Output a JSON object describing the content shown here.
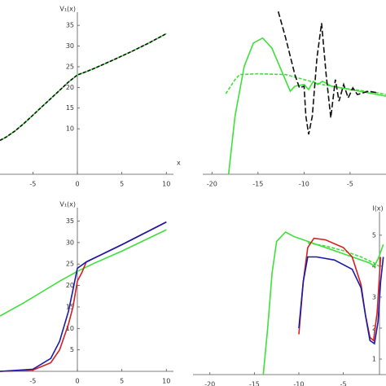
{
  "chart_data": [
    {
      "type": "line",
      "y_label": "V₁(x)",
      "x_label": "x",
      "xlim": [
        -8.7,
        10.8
      ],
      "ylim": [
        -1,
        37
      ],
      "xticks": [
        -5,
        0,
        5,
        10
      ],
      "yticks": [
        10,
        15,
        20,
        25,
        30,
        35
      ],
      "x": [
        -8.7,
        -8,
        -7,
        -6,
        -5,
        -4,
        -3,
        -2,
        -1,
        0,
        1,
        2,
        4,
        6,
        8,
        10
      ],
      "series": [
        {
          "color": "#3fe03a",
          "dash": false,
          "values": [
            7.2,
            8,
            9.5,
            11.3,
            13.3,
            15.3,
            17.3,
            19.3,
            21.3,
            23,
            23.8,
            24.7,
            26.6,
            28.6,
            30.7,
            33
          ]
        },
        {
          "color": "#111111",
          "dash": true,
          "values": [
            7.2,
            8,
            9.5,
            11.3,
            13.3,
            15.3,
            17.3,
            19.3,
            21.3,
            23,
            23.8,
            24.7,
            26.6,
            28.6,
            30.7,
            33
          ]
        }
      ]
    },
    {
      "type": "line",
      "xlim": [
        -21,
        -1.1
      ],
      "ylim": [
        0,
        10
      ],
      "xticks": [
        -20,
        -15,
        -10,
        -5
      ],
      "series": [
        {
          "color": "#3fe03a",
          "dash": false,
          "x": [
            -18.2,
            -17.5,
            -16.5,
            -15.5,
            -14.5,
            -13.5,
            -12.5,
            -11.5,
            -11,
            -10,
            -9.5,
            -9,
            -8.5,
            -8,
            -7,
            -6,
            -5,
            -4,
            -3,
            -2,
            -1.1
          ],
          "values": [
            0,
            3.5,
            6.5,
            7.9,
            8.2,
            7.6,
            6.3,
            5,
            5.3,
            5.4,
            5.1,
            5.6,
            5.4,
            5.6,
            5.3,
            5.2,
            5.1,
            5,
            4.9,
            4.8,
            4.7
          ]
        },
        {
          "color": "#3fe03a",
          "dash": true,
          "x": [
            -18.5,
            -17.5,
            -17,
            -15,
            -12,
            -10,
            -8,
            -6,
            -4,
            -2,
            -1.1
          ],
          "values": [
            4.85,
            5.7,
            6,
            6.05,
            6,
            5.7,
            5.4,
            5.2,
            5.05,
            4.9,
            4.8
          ]
        },
        {
          "color": "#111111",
          "dash": true,
          "x": [
            -12.8,
            -12,
            -11,
            -10.5,
            -10,
            -9.8,
            -9.5,
            -9.1,
            -8.6,
            -8.1,
            -7.6,
            -7.1,
            -6.6,
            -6.2,
            -5.7,
            -5.2,
            -4.7,
            -4.2,
            -3,
            -2
          ],
          "values": [
            9.8,
            8.2,
            6,
            5.2,
            5.3,
            3.5,
            2.4,
            3.5,
            7,
            9.1,
            6,
            3.4,
            5.7,
            4.4,
            5.4,
            4.6,
            5.2,
            4.8,
            5,
            4.9
          ]
        }
      ]
    },
    {
      "type": "line",
      "y_label": "V₁(x)",
      "xlim": [
        -8.7,
        10.8
      ],
      "ylim": [
        0,
        37
      ],
      "xticks": [
        -5,
        0,
        5,
        10
      ],
      "yticks": [
        5,
        10,
        15,
        20,
        25,
        30,
        35
      ],
      "series": [
        {
          "color": "#3fe03a",
          "dash": false,
          "x": [
            -8.7,
            -6,
            -4,
            -2,
            0,
            2,
            5,
            10
          ],
          "values": [
            12.9,
            16,
            18.5,
            21,
            23.3,
            25.3,
            28,
            33
          ]
        },
        {
          "color": "#d42020",
          "dash": false,
          "x": [
            -8.7,
            -5,
            -3,
            -2,
            -1,
            -0.5,
            0,
            0.5,
            1,
            5,
            10
          ],
          "values": [
            0,
            0.3,
            2,
            5,
            11,
            15,
            21,
            23,
            25.5,
            29.5,
            34.8
          ]
        },
        {
          "color": "#1a1aa8",
          "dash": false,
          "x": [
            -8.7,
            -5,
            -3,
            -2,
            -1,
            -0.5,
            0,
            1,
            5,
            10
          ],
          "values": [
            0,
            0.5,
            3,
            7,
            14,
            19,
            24,
            25.5,
            29.5,
            34.8
          ]
        }
      ]
    },
    {
      "type": "line",
      "y_label": "I(x)",
      "xlim": [
        -21.9,
        -0.2
      ],
      "ylim": [
        0.5,
        5.6
      ],
      "xticks": [
        -20,
        -15,
        -10,
        -5
      ],
      "yticks": [
        1,
        2,
        3,
        4,
        5
      ],
      "series": [
        {
          "color": "#3fe03a",
          "dash": false,
          "x": [
            -14,
            -13.5,
            -13,
            -12.5,
            -11.5,
            -10.5,
            -9,
            -7,
            -5,
            -3,
            -2,
            -1.5,
            -1,
            -0.5
          ],
          "values": [
            0.5,
            2,
            3.8,
            4.8,
            5.1,
            4.95,
            4.8,
            4.6,
            4.4,
            4.2,
            4.1,
            4,
            4.3,
            4.7
          ]
        },
        {
          "color": "#3fe03a",
          "dash": true,
          "x": [
            -9,
            -7,
            -5,
            -3,
            -1.5,
            -1
          ],
          "values": [
            4.75,
            4.65,
            4.5,
            4.3,
            4.1,
            4
          ]
        },
        {
          "color": "#d42020",
          "dash": false,
          "x": [
            -10,
            -9.5,
            -9,
            -8.3,
            -7,
            -5,
            -4,
            -3,
            -2.5,
            -2,
            -1.6,
            -1.2,
            -0.8
          ],
          "values": [
            1.8,
            3.5,
            4.6,
            4.9,
            4.85,
            4.6,
            4.3,
            3.4,
            2.4,
            1.7,
            1.6,
            2.5,
            4.3
          ]
        },
        {
          "color": "#1a1aa8",
          "dash": false,
          "x": [
            -10,
            -9.5,
            -9,
            -8,
            -6,
            -4,
            -3,
            -2.5,
            -2,
            -1.5,
            -1.1,
            -0.8,
            -0.5
          ],
          "values": [
            2,
            3.5,
            4.3,
            4.3,
            4.2,
            3.9,
            3.3,
            2.4,
            1.6,
            1.5,
            2.2,
            3.5,
            4.3
          ]
        }
      ]
    }
  ]
}
